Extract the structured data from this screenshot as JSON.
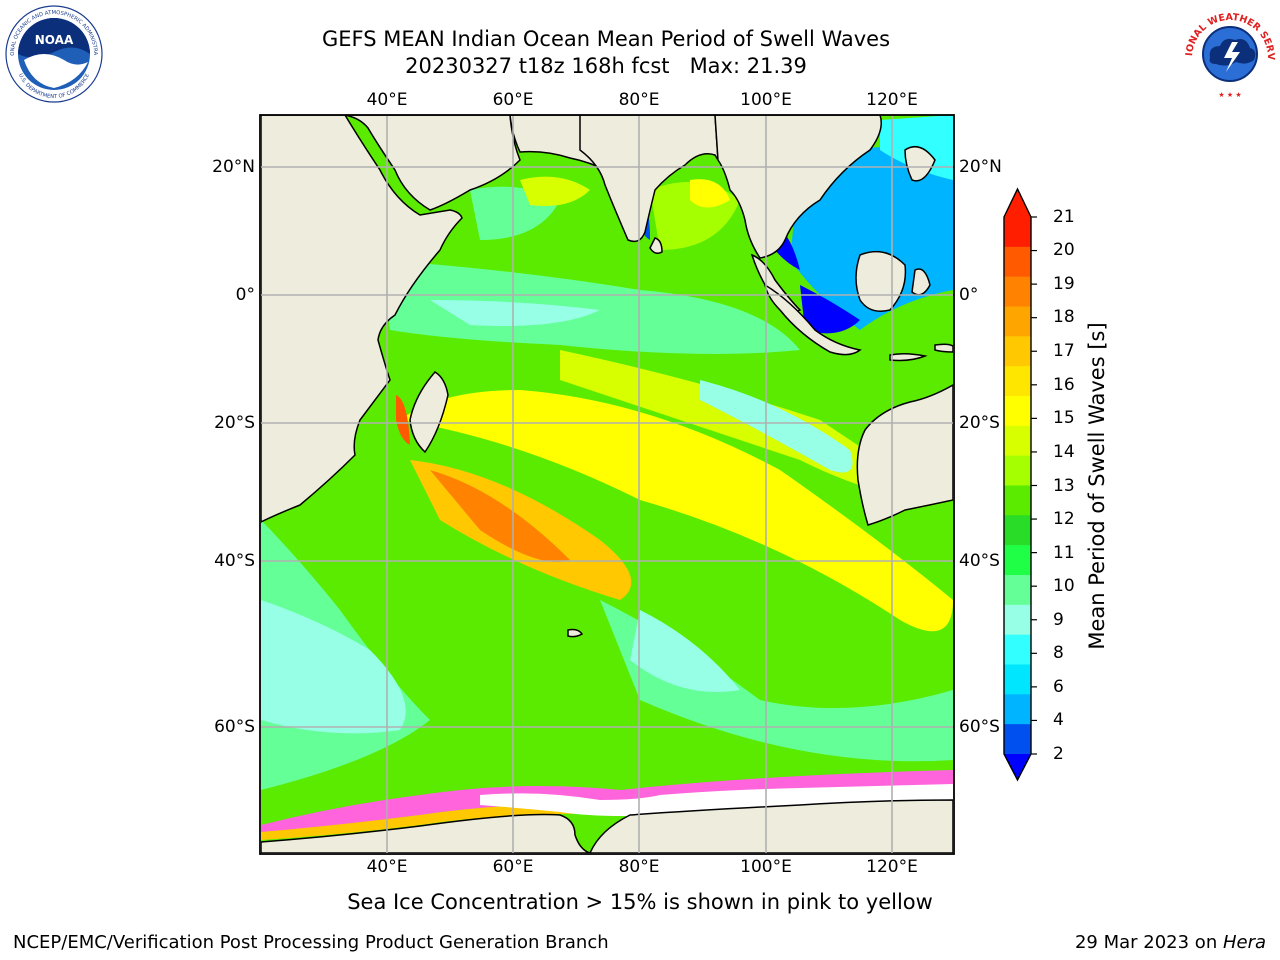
{
  "header": {
    "title_line1": "GEFS MEAN Indian Ocean Mean Period of Swell Waves",
    "title_line2": "20230327 t18z 168h fcst   Max: 21.39"
  },
  "map": {
    "lon_ticks_top": [
      "40°E",
      "60°E",
      "80°E",
      "100°E",
      "120°E"
    ],
    "lon_ticks_bottom": [
      "40°E",
      "60°E",
      "80°E",
      "100°E",
      "120°E"
    ],
    "lat_ticks_left": [
      "20°N",
      "0°",
      "20°S",
      "40°S",
      "60°S"
    ],
    "lat_ticks_right": [
      "20°N",
      "0°",
      "20°S",
      "40°S",
      "60°S"
    ],
    "colors": {
      "land": "#eeecdd",
      "ice_mask": "#ffffff",
      "grid": "#b0b0b0"
    }
  },
  "colorbar": {
    "label": "Mean Period of Swell Waves [s]",
    "tick_labels": [
      "21",
      "20",
      "19",
      "18",
      "17",
      "16",
      "15",
      "14",
      "13",
      "12",
      "11",
      "10",
      "9",
      "8",
      "6",
      "4",
      "2"
    ],
    "colors_top_to_bottom": [
      "#ff1e00",
      "#ff5a00",
      "#ff8200",
      "#ffa500",
      "#ffc800",
      "#ffe600",
      "#ffff00",
      "#d7ff00",
      "#a5ff00",
      "#5aeb00",
      "#28dc28",
      "#1eff46",
      "#64ff96",
      "#96ffe6",
      "#32ffff",
      "#00e6ff",
      "#00b4ff",
      "#0050f0"
    ],
    "extend_top_color": "#ff1e00",
    "extend_bottom_color": "#0000ff"
  },
  "ice_note": "Sea Ice Concentration > 15% is shown in pink to yellow",
  "footer": {
    "left": "NCEP/EMC/Verification Post Processing Product Generation Branch",
    "right_prefix": "29 Mar 2023 on ",
    "right_host": "Hera"
  },
  "logos": {
    "noaa_text": "NOAA",
    "noaa_ring_text": "NATIONAL OCEANIC AND ATMOSPHERIC ADMINISTRATION",
    "noaa_ring_bottom": "U.S. DEPARTMENT OF COMMERCE",
    "nws_ring_text": "NATIONAL WEATHER SERVICE"
  }
}
